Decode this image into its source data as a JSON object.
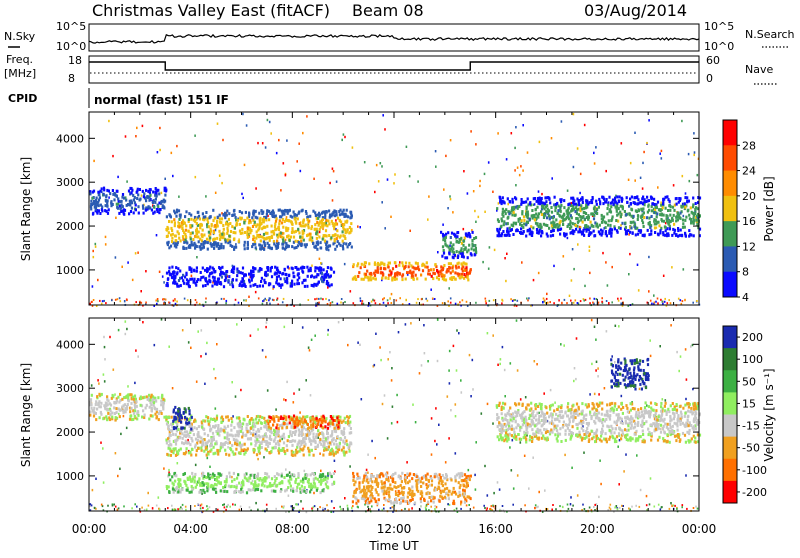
{
  "header": {
    "station": "Christmas Valley East (fitACF)",
    "beam": "Beam 08",
    "date": "03/Aug/2014"
  },
  "top_panels": {
    "nsky_label": "N.Sky",
    "nsky_ticks": [
      "10^5",
      "10^0"
    ],
    "nsearch_label": "N.Search",
    "nsearch_ticks": [
      "10^5",
      "10^0"
    ],
    "freq_label": "Freq.",
    "freq_unit": "[MHz]",
    "freq_ticks": [
      "18",
      "8"
    ],
    "nave_label": "Nave",
    "nave_ticks": [
      "60",
      "0"
    ],
    "cpid_label": "CPID",
    "cpid_value": "normal (fast) 151 IF"
  },
  "chart_data": [
    {
      "type": "heatmap",
      "name": "power",
      "ylabel": "Slant Range [km]",
      "yticks": [
        1000,
        2000,
        3000,
        4000
      ],
      "ylim": [
        200,
        4600
      ],
      "xlim": [
        0,
        24
      ],
      "colorbar": {
        "label": "Power [dB]",
        "ticks": [
          "28",
          "24",
          "20",
          "16",
          "12",
          "8",
          "4"
        ],
        "colors": [
          "#ff0000",
          "#ff4b00",
          "#ff8c00",
          "#f0c010",
          "#3f9a56",
          "#2b5bb3",
          "#0a0aff"
        ]
      },
      "bands": [
        {
          "t": [
            0.0,
            3.0
          ],
          "r": [
            2300,
            2900
          ],
          "level": 5
        },
        {
          "t": [
            3.0,
            10.3
          ],
          "r": [
            1500,
            2400
          ],
          "level": 3
        },
        {
          "t": [
            3.0,
            9.6
          ],
          "r": [
            650,
            1100
          ],
          "level": 6
        },
        {
          "t": [
            10.3,
            15.0
          ],
          "r": [
            800,
            1200
          ],
          "level": 1
        },
        {
          "t": [
            13.8,
            15.2
          ],
          "r": [
            1300,
            1900
          ],
          "level": 4
        },
        {
          "t": [
            16.0,
            24.0
          ],
          "r": [
            1800,
            2700
          ],
          "level": 4
        }
      ]
    },
    {
      "type": "heatmap",
      "name": "velocity",
      "ylabel": "Slant Range [km]",
      "yticks": [
        1000,
        2000,
        3000,
        4000
      ],
      "ylim": [
        200,
        4600
      ],
      "xlim": [
        0,
        24
      ],
      "xlabel": "Time UT",
      "xticks": [
        "00:00",
        "04:00",
        "08:00",
        "12:00",
        "16:00",
        "20:00",
        "00:00"
      ],
      "colorbar": {
        "label": "Velocity [m s⁻¹]",
        "ticks": [
          "200",
          "100",
          "50",
          "15",
          "-15",
          "-50",
          "-100",
          "-200"
        ],
        "colors": [
          "#1a2bb0",
          "#2e7d32",
          "#3cb043",
          "#90ee60",
          "#c8c8c8",
          "#f0a020",
          "#ff7000",
          "#ff0000"
        ]
      },
      "bands": [
        {
          "t": [
            0.0,
            3.0
          ],
          "r": [
            2300,
            2900
          ],
          "level": 4
        },
        {
          "t": [
            3.0,
            10.3
          ],
          "r": [
            1500,
            2400
          ],
          "level": 4
        },
        {
          "t": [
            3.0,
            9.6
          ],
          "r": [
            650,
            1100
          ],
          "level": 3
        },
        {
          "t": [
            7.0,
            9.8
          ],
          "r": [
            2100,
            2400
          ],
          "level": 6
        },
        {
          "t": [
            3.2,
            4.0
          ],
          "r": [
            2100,
            2600
          ],
          "level": 0
        },
        {
          "t": [
            10.3,
            15.0
          ],
          "r": [
            400,
            1100
          ],
          "level": 5
        },
        {
          "t": [
            16.0,
            24.0
          ],
          "r": [
            1800,
            2700
          ],
          "level": 4
        },
        {
          "t": [
            20.5,
            22.0
          ],
          "r": [
            3000,
            3700
          ],
          "level": 0
        }
      ]
    }
  ]
}
